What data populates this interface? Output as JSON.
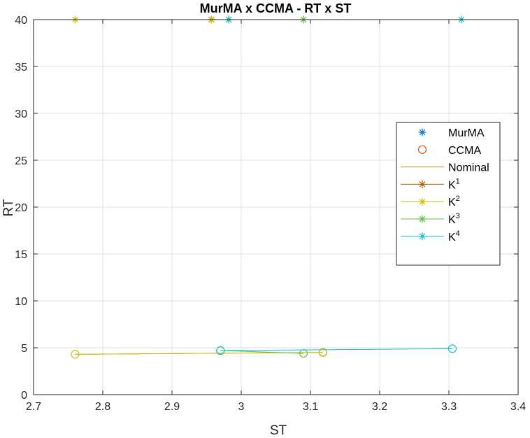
{
  "chart_data": {
    "type": "line",
    "title": "MurMA x CCMA - RT  x ST",
    "xlabel": "ST",
    "ylabel": "RT",
    "xlim": [
      2.7,
      3.4
    ],
    "ylim": [
      0,
      40
    ],
    "xticks": [
      "2.7",
      "2.8",
      "2.9",
      "3",
      "3.1",
      "3.2",
      "3.3",
      "3.4"
    ],
    "yticks": [
      "0",
      "5",
      "10",
      "15",
      "20",
      "25",
      "30",
      "35",
      "40"
    ],
    "grid": true,
    "legend_position": "right",
    "legend": [
      {
        "label": "MurMA",
        "sup": "",
        "marker": "star",
        "line": false,
        "color": "#0072BD"
      },
      {
        "label": "CCMA",
        "sup": "",
        "marker": "circle",
        "line": false,
        "color": "#D95319"
      },
      {
        "label": "Nominal",
        "sup": "",
        "marker": "none",
        "line": true,
        "color": "#C98A12"
      },
      {
        "label": "K",
        "sup": "1",
        "marker": "star",
        "line": true,
        "color": "#B45F06"
      },
      {
        "label": "K",
        "sup": "2",
        "marker": "star",
        "line": true,
        "color": "#C8C000"
      },
      {
        "label": "K",
        "sup": "3",
        "marker": "star",
        "line": true,
        "color": "#5CBF3F"
      },
      {
        "label": "K",
        "sup": "4",
        "marker": "star",
        "line": true,
        "color": "#17BECF"
      }
    ],
    "series": [
      {
        "name": "Nominal",
        "color": "#C98A12",
        "marker": "none",
        "x": [
          2.76,
          3.118
        ],
        "y": [
          4.3,
          4.5
        ]
      },
      {
        "name": "K1",
        "color": "#B45F06",
        "marker": "star",
        "x": [
          2.957,
          2.957
        ],
        "y": [
          40,
          40
        ]
      },
      {
        "name": "K2",
        "color": "#C8C000",
        "marker": "star",
        "x": [
          2.76,
          2.957
        ],
        "y": [
          40,
          40
        ]
      },
      {
        "name": "K3",
        "color": "#5CBF3F",
        "marker": "star",
        "x": [
          2.982,
          3.09
        ],
        "y": [
          40,
          40
        ]
      },
      {
        "name": "K4",
        "color": "#17BECF",
        "marker": "star",
        "x": [
          2.982,
          3.318
        ],
        "y": [
          40,
          40
        ]
      },
      {
        "name": "CCMA-K1",
        "color": "#D95319",
        "marker": "circle",
        "x": [
          3.118
        ],
        "y": [
          4.5
        ]
      },
      {
        "name": "CCMA-K2",
        "color": "#C8C000",
        "marker": "circle",
        "x": [
          2.76,
          3.118
        ],
        "y": [
          4.3,
          4.5
        ]
      },
      {
        "name": "CCMA-K3",
        "color": "#5CBF3F",
        "marker": "circle",
        "x": [
          2.97,
          3.09
        ],
        "y": [
          4.7,
          4.4
        ]
      },
      {
        "name": "CCMA-K4",
        "color": "#17BECF",
        "marker": "circle",
        "x": [
          2.97,
          3.305
        ],
        "y": [
          4.7,
          4.9
        ]
      }
    ]
  }
}
